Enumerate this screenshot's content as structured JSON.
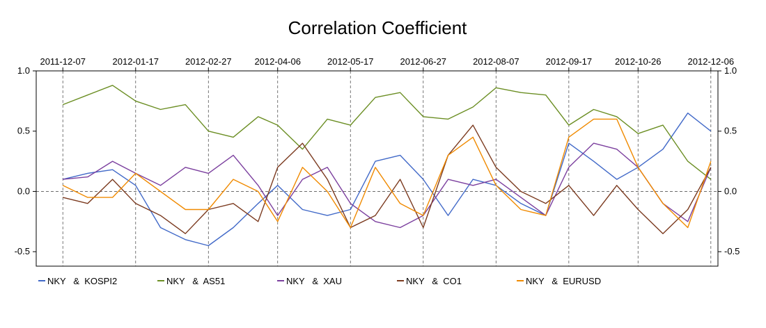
{
  "chart_data": {
    "type": "line",
    "title": "Correlation Coefficient",
    "xlabel": "",
    "ylabel": "",
    "x_tick_labels": [
      "2011-12-07",
      "2012-01-17",
      "2012-02-27",
      "2012-04-06",
      "2012-05-17",
      "2012-06-27",
      "2012-08-07",
      "2012-09-17",
      "2012-10-26",
      "2012-12-06"
    ],
    "x_ticks": [
      "2011-12-07",
      "2012-01-17",
      "2012-02-27",
      "2012-04-06",
      "2012-05-17",
      "2012-06-27",
      "2012-08-07",
      "2012-09-17",
      "2012-10-26",
      "2012-12-06"
    ],
    "y_ticks": [
      1.0,
      0.5,
      0.0,
      -0.5
    ],
    "y_tick_labels": [
      "1.0",
      "0.5",
      "0.0",
      "-0.5"
    ],
    "xlim": [
      "2011-11-22",
      "2012-12-10"
    ],
    "ylim": [
      -0.62,
      1.0
    ],
    "grid": "dashed vertical lines at x ticks; dashed horizontal line at 0",
    "legend_position": "bottom",
    "series": [
      {
        "name": "NKY   &  KOSPI2",
        "color": "#4169c8",
        "x": [
          "2011-12-07",
          "2011-12-21",
          "2012-01-04",
          "2012-01-17",
          "2012-01-31",
          "2012-02-14",
          "2012-02-27",
          "2012-03-12",
          "2012-03-26",
          "2012-04-06",
          "2012-04-20",
          "2012-05-04",
          "2012-05-17",
          "2012-05-31",
          "2012-06-14",
          "2012-06-27",
          "2012-07-11",
          "2012-07-25",
          "2012-08-07",
          "2012-08-21",
          "2012-09-04",
          "2012-09-17",
          "2012-10-01",
          "2012-10-14",
          "2012-10-26",
          "2012-11-09",
          "2012-11-23",
          "2012-12-06"
        ],
        "values": [
          0.1,
          0.15,
          0.18,
          0.05,
          -0.3,
          -0.4,
          -0.45,
          -0.3,
          -0.1,
          0.05,
          -0.15,
          -0.2,
          -0.15,
          0.25,
          0.3,
          0.1,
          -0.2,
          0.1,
          0.05,
          -0.1,
          -0.2,
          0.4,
          0.25,
          0.1,
          0.2,
          0.35,
          0.65,
          0.5
        ]
      },
      {
        "name": "NKY   &  AS51",
        "color": "#6b8e23",
        "x": [
          "2011-12-07",
          "2011-12-21",
          "2012-01-04",
          "2012-01-17",
          "2012-01-31",
          "2012-02-14",
          "2012-02-27",
          "2012-03-12",
          "2012-03-26",
          "2012-04-06",
          "2012-04-20",
          "2012-05-04",
          "2012-05-17",
          "2012-05-31",
          "2012-06-14",
          "2012-06-27",
          "2012-07-11",
          "2012-07-25",
          "2012-08-07",
          "2012-08-21",
          "2012-09-04",
          "2012-09-17",
          "2012-10-01",
          "2012-10-14",
          "2012-10-26",
          "2012-11-09",
          "2012-11-23",
          "2012-12-06"
        ],
        "values": [
          0.72,
          0.8,
          0.88,
          0.75,
          0.68,
          0.72,
          0.5,
          0.45,
          0.62,
          0.55,
          0.35,
          0.6,
          0.55,
          0.78,
          0.82,
          0.62,
          0.6,
          0.7,
          0.86,
          0.82,
          0.8,
          0.55,
          0.68,
          0.62,
          0.48,
          0.55,
          0.25,
          0.1
        ]
      },
      {
        "name": "NKY   &  XAU",
        "color": "#7b3f9e",
        "x": [
          "2011-12-07",
          "2011-12-21",
          "2012-01-04",
          "2012-01-17",
          "2012-01-31",
          "2012-02-14",
          "2012-02-27",
          "2012-03-12",
          "2012-03-26",
          "2012-04-06",
          "2012-04-20",
          "2012-05-04",
          "2012-05-17",
          "2012-05-31",
          "2012-06-14",
          "2012-06-27",
          "2012-07-11",
          "2012-07-25",
          "2012-08-07",
          "2012-08-21",
          "2012-09-04",
          "2012-09-17",
          "2012-10-01",
          "2012-10-14",
          "2012-10-26",
          "2012-11-09",
          "2012-11-23",
          "2012-12-06"
        ],
        "values": [
          0.1,
          0.12,
          0.25,
          0.15,
          0.05,
          0.2,
          0.15,
          0.3,
          0.05,
          -0.2,
          0.1,
          0.2,
          -0.1,
          -0.25,
          -0.3,
          -0.2,
          0.1,
          0.05,
          0.1,
          -0.05,
          -0.2,
          0.2,
          0.4,
          0.35,
          0.2,
          -0.1,
          -0.25,
          0.2
        ]
      },
      {
        "name": "NKY   &  CO1",
        "color": "#7b3a1f",
        "x": [
          "2011-12-07",
          "2011-12-21",
          "2012-01-04",
          "2012-01-17",
          "2012-01-31",
          "2012-02-14",
          "2012-02-27",
          "2012-03-12",
          "2012-03-26",
          "2012-04-06",
          "2012-04-20",
          "2012-05-04",
          "2012-05-17",
          "2012-05-31",
          "2012-06-14",
          "2012-06-27",
          "2012-07-11",
          "2012-07-25",
          "2012-08-07",
          "2012-08-21",
          "2012-09-04",
          "2012-09-17",
          "2012-10-01",
          "2012-10-14",
          "2012-10-26",
          "2012-11-09",
          "2012-11-23",
          "2012-12-06"
        ],
        "values": [
          -0.05,
          -0.1,
          0.1,
          -0.1,
          -0.2,
          -0.35,
          -0.15,
          -0.1,
          -0.25,
          0.2,
          0.4,
          0.1,
          -0.3,
          -0.2,
          0.1,
          -0.3,
          0.3,
          0.55,
          0.2,
          0.0,
          -0.1,
          0.05,
          -0.2,
          0.05,
          -0.15,
          -0.35,
          -0.15,
          0.2
        ]
      },
      {
        "name": "NKY   &  EURUSD",
        "color": "#f08a00",
        "x": [
          "2011-12-07",
          "2011-12-21",
          "2012-01-04",
          "2012-01-17",
          "2012-01-31",
          "2012-02-14",
          "2012-02-27",
          "2012-03-12",
          "2012-03-26",
          "2012-04-06",
          "2012-04-20",
          "2012-05-04",
          "2012-05-17",
          "2012-05-31",
          "2012-06-14",
          "2012-06-27",
          "2012-07-11",
          "2012-07-25",
          "2012-08-07",
          "2012-08-21",
          "2012-09-04",
          "2012-09-17",
          "2012-10-01",
          "2012-10-14",
          "2012-10-26",
          "2012-11-09",
          "2012-11-23",
          "2012-12-06"
        ],
        "values": [
          0.05,
          -0.05,
          -0.05,
          0.15,
          0.0,
          -0.15,
          -0.15,
          0.1,
          0.0,
          -0.25,
          0.2,
          0.0,
          -0.3,
          0.2,
          -0.1,
          -0.2,
          0.3,
          0.45,
          0.05,
          -0.15,
          -0.2,
          0.45,
          0.6,
          0.6,
          0.2,
          -0.1,
          -0.3,
          0.25
        ]
      }
    ]
  }
}
